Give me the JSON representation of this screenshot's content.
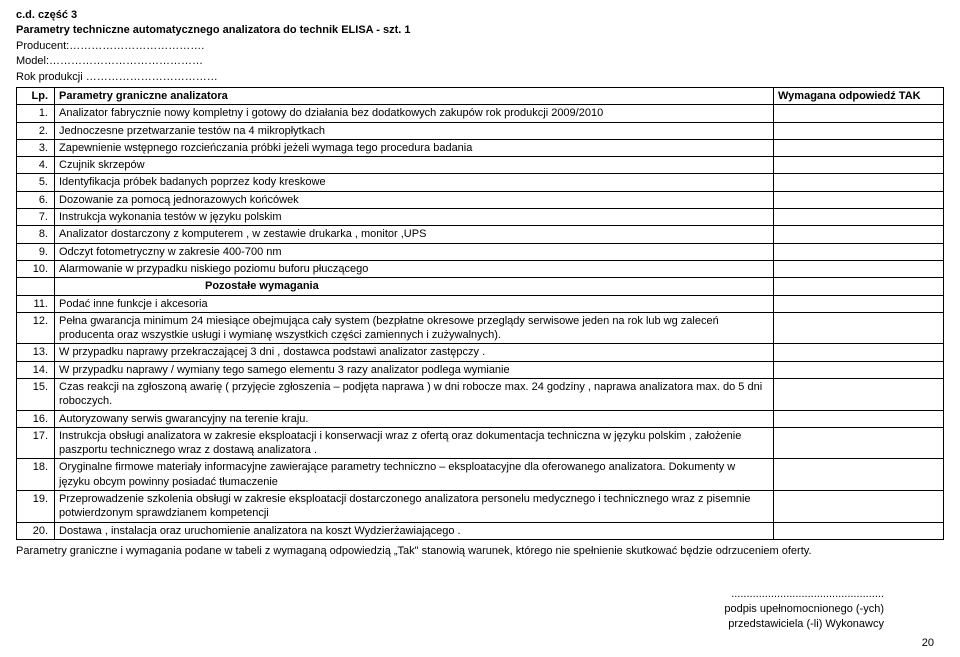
{
  "header": {
    "line1": "c.d. część 3",
    "line2": "Parametry techniczne automatycznego analizatora do technik ELISA -  szt. 1",
    "producent": "Producent:……………………………….",
    "model": "Model:……………………………………",
    "rok": "Rok produkcji ………………………………"
  },
  "table": {
    "head": {
      "lp": "Lp.",
      "param": "Parametry graniczne analizatora",
      "resp": "Wymagana odpowiedź TAK"
    },
    "rows": [
      {
        "n": "1.",
        "t": "Analizator  fabrycznie nowy kompletny i gotowy do działania bez dodatkowych zakupów  rok produkcji 2009/2010"
      },
      {
        "n": "2.",
        "t": "Jednoczesne przetwarzanie testów na 4 mikropłytkach"
      },
      {
        "n": "3.",
        "t": "Zapewnienie wstępnego rozcieńczania próbki jeżeli wymaga tego procedura badania"
      },
      {
        "n": "4.",
        "t": "Czujnik skrzepów"
      },
      {
        "n": "5.",
        "t": "Identyfikacja próbek badanych poprzez kody kreskowe"
      },
      {
        "n": "6.",
        "t": "Dozowanie za pomocą jednorazowych końcówek"
      },
      {
        "n": "7.",
        "t": "Instrukcja wykonania testów w języku polskim"
      },
      {
        "n": "8.",
        "t": "Analizator dostarczony z komputerem , w zestawie drukarka , monitor ,UPS"
      },
      {
        "n": "9.",
        "t": "Odczyt fotometryczny w zakresie 400-700 nm"
      },
      {
        "n": "10.",
        "t": "Alarmowanie w przypadku niskiego poziomu buforu  płuczącego"
      }
    ],
    "subheader": "Pozostałe wymagania",
    "rows2": [
      {
        "n": "11.",
        "t": "Podać inne funkcje i akcesoria"
      },
      {
        "n": "12.",
        "t": "Pełna gwarancja  minimum 24  miesiące obejmująca cały system  (bezpłatne okresowe przeglądy serwisowe  jeden na rok lub wg zaleceń producenta oraz wszystkie usługi i wymianę wszystkich części zamiennych i  zużywalnych)."
      },
      {
        "n": "13.",
        "t": "W przypadku naprawy przekraczającej 3 dni , dostawca podstawi analizator zastępczy ."
      },
      {
        "n": "14.",
        "t": "W przypadku naprawy /  wymiany tego samego elementu 3 razy  analizator podlega wymianie"
      },
      {
        "n": "15.",
        "t": "Czas reakcji na zgłoszoną awarię ( przyjęcie zgłoszenia – podjęta naprawa ) w dni robocze max. 24 godziny , naprawa analizatora max. do 5 dni  roboczych."
      },
      {
        "n": "16.",
        "t": "Autoryzowany serwis gwarancyjny na terenie kraju."
      },
      {
        "n": "17.",
        "t": "Instrukcja obsługi analizatora w zakresie eksploatacji i konserwacji   wraz z ofertą oraz dokumentacja  techniczna w języku polskim , założenie paszportu technicznego wraz z dostawą analizatora ."
      },
      {
        "n": "18.",
        "t": "Oryginalne firmowe materiały informacyjne zawierające parametry techniczno – eksploatacyjne dla oferowanego analizatora. Dokumenty w języku obcym powinny posiadać tłumaczenie"
      },
      {
        "n": "19.",
        "t": "Przeprowadzenie szkolenia  obsługi w zakresie eksploatacji dostarczonego analizatora personelu medycznego i technicznego wraz z pisemnie potwierdzonym sprawdzianem kompetencji"
      },
      {
        "n": "20.",
        "t": "Dostawa , instalacja oraz uruchomienie analizatora na koszt Wydzierżawiającego ."
      }
    ]
  },
  "footer": {
    "note": "Parametry  graniczne i wymagania  podane  w tabeli z wymaganą  odpowiedzią  „Tak\" stanowią warunek, którego nie spełnienie skutkować będzie odrzuceniem  oferty.",
    "sig1": "..................................................",
    "sig2": "podpis upełnomocnionego (-ych)",
    "sig3": " przedstawiciela (-li) Wykonawcy",
    "page": "20"
  }
}
